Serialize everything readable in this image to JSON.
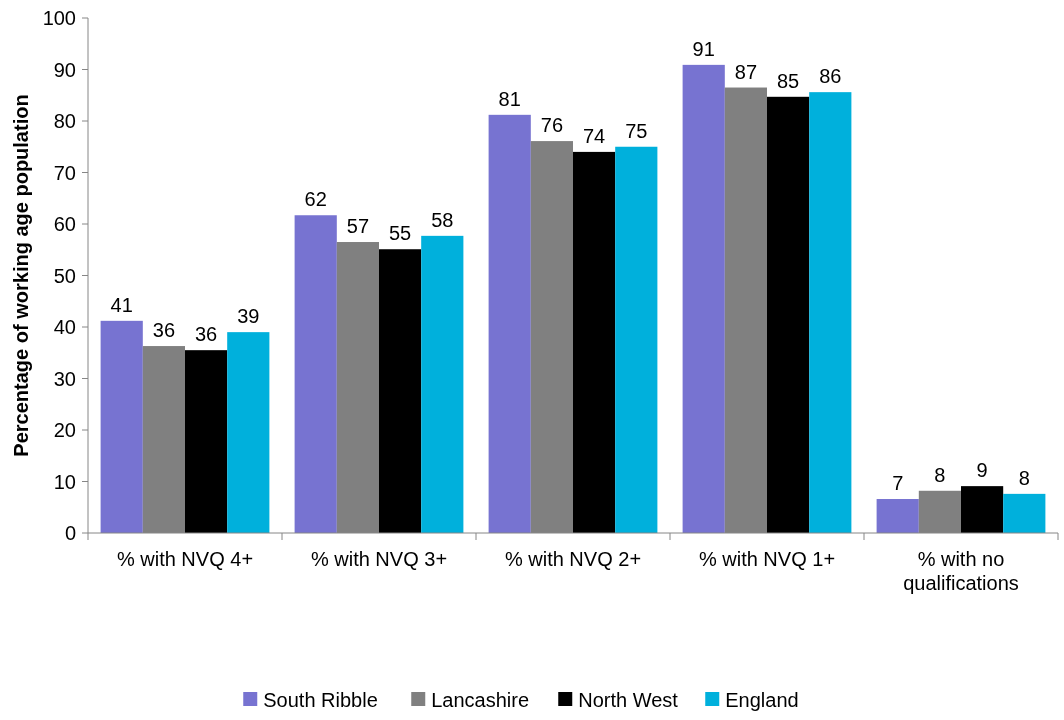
{
  "chart_data": {
    "type": "bar",
    "ylabel": "Percentage of working age population",
    "categories": [
      "% with NVQ 4+",
      "% with NVQ 3+",
      "% with NVQ 2+",
      "% with NVQ 1+",
      "% with no qualifications"
    ],
    "series": [
      {
        "name": "South Ribble",
        "color": "#7773d1",
        "values": [
          41.2,
          61.7,
          81.2,
          90.9,
          6.6
        ],
        "value_labels": [
          "41",
          "62",
          "81",
          "91",
          "7"
        ]
      },
      {
        "name": "Lancashire",
        "color": "#808080",
        "values": [
          36.3,
          56.5,
          76.1,
          86.5,
          8.2
        ],
        "value_labels": [
          "36",
          "57",
          "76",
          "87",
          "8"
        ]
      },
      {
        "name": "North West",
        "color": "#000000",
        "values": [
          35.5,
          55.1,
          74.0,
          84.7,
          9.1
        ],
        "value_labels": [
          "36",
          "55",
          "74",
          "85",
          "9"
        ]
      },
      {
        "name": "England",
        "color": "#00b0dc",
        "values": [
          39.0,
          57.7,
          75.0,
          85.6,
          7.6
        ],
        "value_labels": [
          "39",
          "58",
          "75",
          "86",
          "8"
        ]
      }
    ],
    "ylim": [
      0,
      100
    ],
    "yticks": [
      0,
      10,
      20,
      30,
      40,
      50,
      60,
      70,
      80,
      90,
      100
    ],
    "grid": false,
    "legend": "bottom"
  }
}
